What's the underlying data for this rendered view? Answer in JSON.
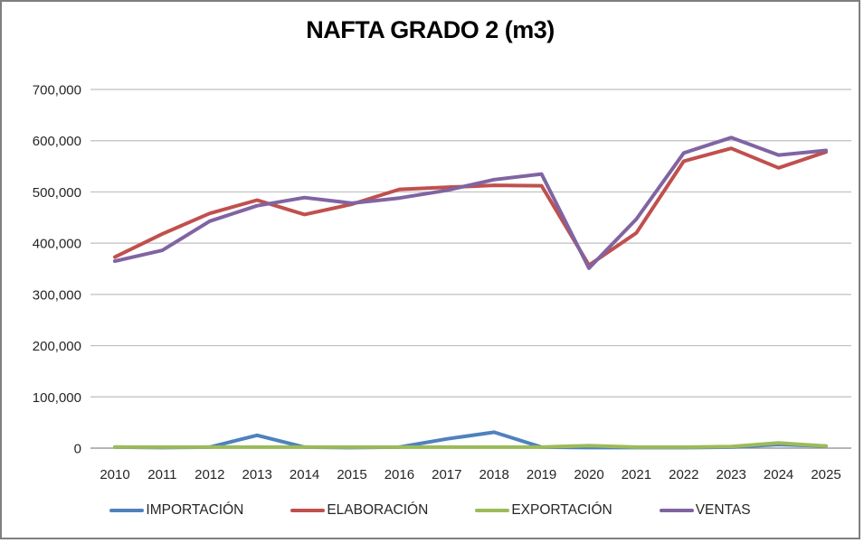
{
  "chart_data": {
    "type": "line",
    "title": "NAFTA GRADO 2 (m3)",
    "xlabel": "",
    "ylabel": "",
    "x": [
      2010,
      2011,
      2012,
      2013,
      2014,
      2015,
      2016,
      2017,
      2018,
      2019,
      2020,
      2021,
      2022,
      2023,
      2024,
      2025
    ],
    "y_ticks": [
      0,
      100000,
      200000,
      300000,
      400000,
      500000,
      600000,
      700000
    ],
    "ylim": [
      0,
      700000
    ],
    "grid": true,
    "legend_position": "bottom",
    "series": [
      {
        "name": "IMPORTACIÓN",
        "color": "#4F81BD",
        "values": [
          2000,
          1000,
          2000,
          25000,
          2000,
          1000,
          2000,
          18000,
          31000,
          2000,
          1000,
          1000,
          1000,
          2000,
          7000,
          4000
        ]
      },
      {
        "name": "ELABORACIÓN",
        "color": "#C0504D",
        "values": [
          373000,
          418000,
          458000,
          484000,
          456000,
          476000,
          505000,
          509000,
          513000,
          512000,
          357000,
          420000,
          560000,
          585000,
          547000,
          578000
        ]
      },
      {
        "name": "EXPORTACIÓN",
        "color": "#9BBB59",
        "values": [
          2000,
          2000,
          2000,
          2000,
          2000,
          2000,
          2000,
          2000,
          2000,
          2000,
          5000,
          2000,
          2000,
          3000,
          10000,
          4000
        ]
      },
      {
        "name": "VENTAS",
        "color": "#8064A2",
        "values": [
          365000,
          386000,
          443000,
          473000,
          489000,
          478000,
          488000,
          503000,
          524000,
          535000,
          351000,
          447000,
          576000,
          606000,
          572000,
          581000
        ]
      }
    ],
    "grid_color": "#BFBFBF",
    "axis_color": "#898989",
    "text_color": "#262626"
  }
}
